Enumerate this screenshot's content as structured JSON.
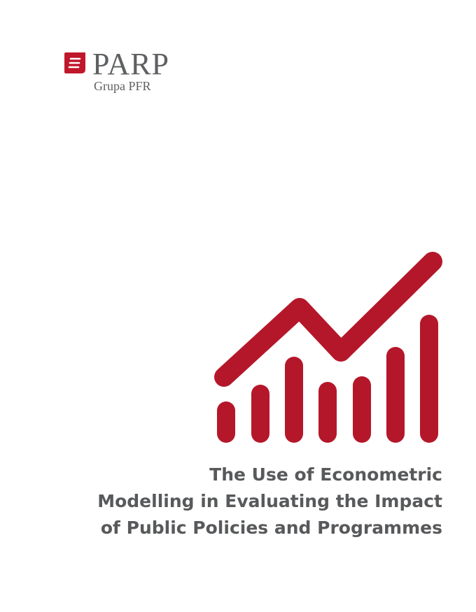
{
  "logo": {
    "name": "PARP",
    "subtitle": "Grupa PFR",
    "brand_color": "#c0172b"
  },
  "graphic": {
    "icon": "rising-bar-chart-with-trend-line-icon",
    "color": "#b5172a"
  },
  "title": {
    "lines": [
      "The Use of Econometric",
      "Modelling in Evaluating the Impact",
      "of Public Policies and Programmes"
    ]
  }
}
